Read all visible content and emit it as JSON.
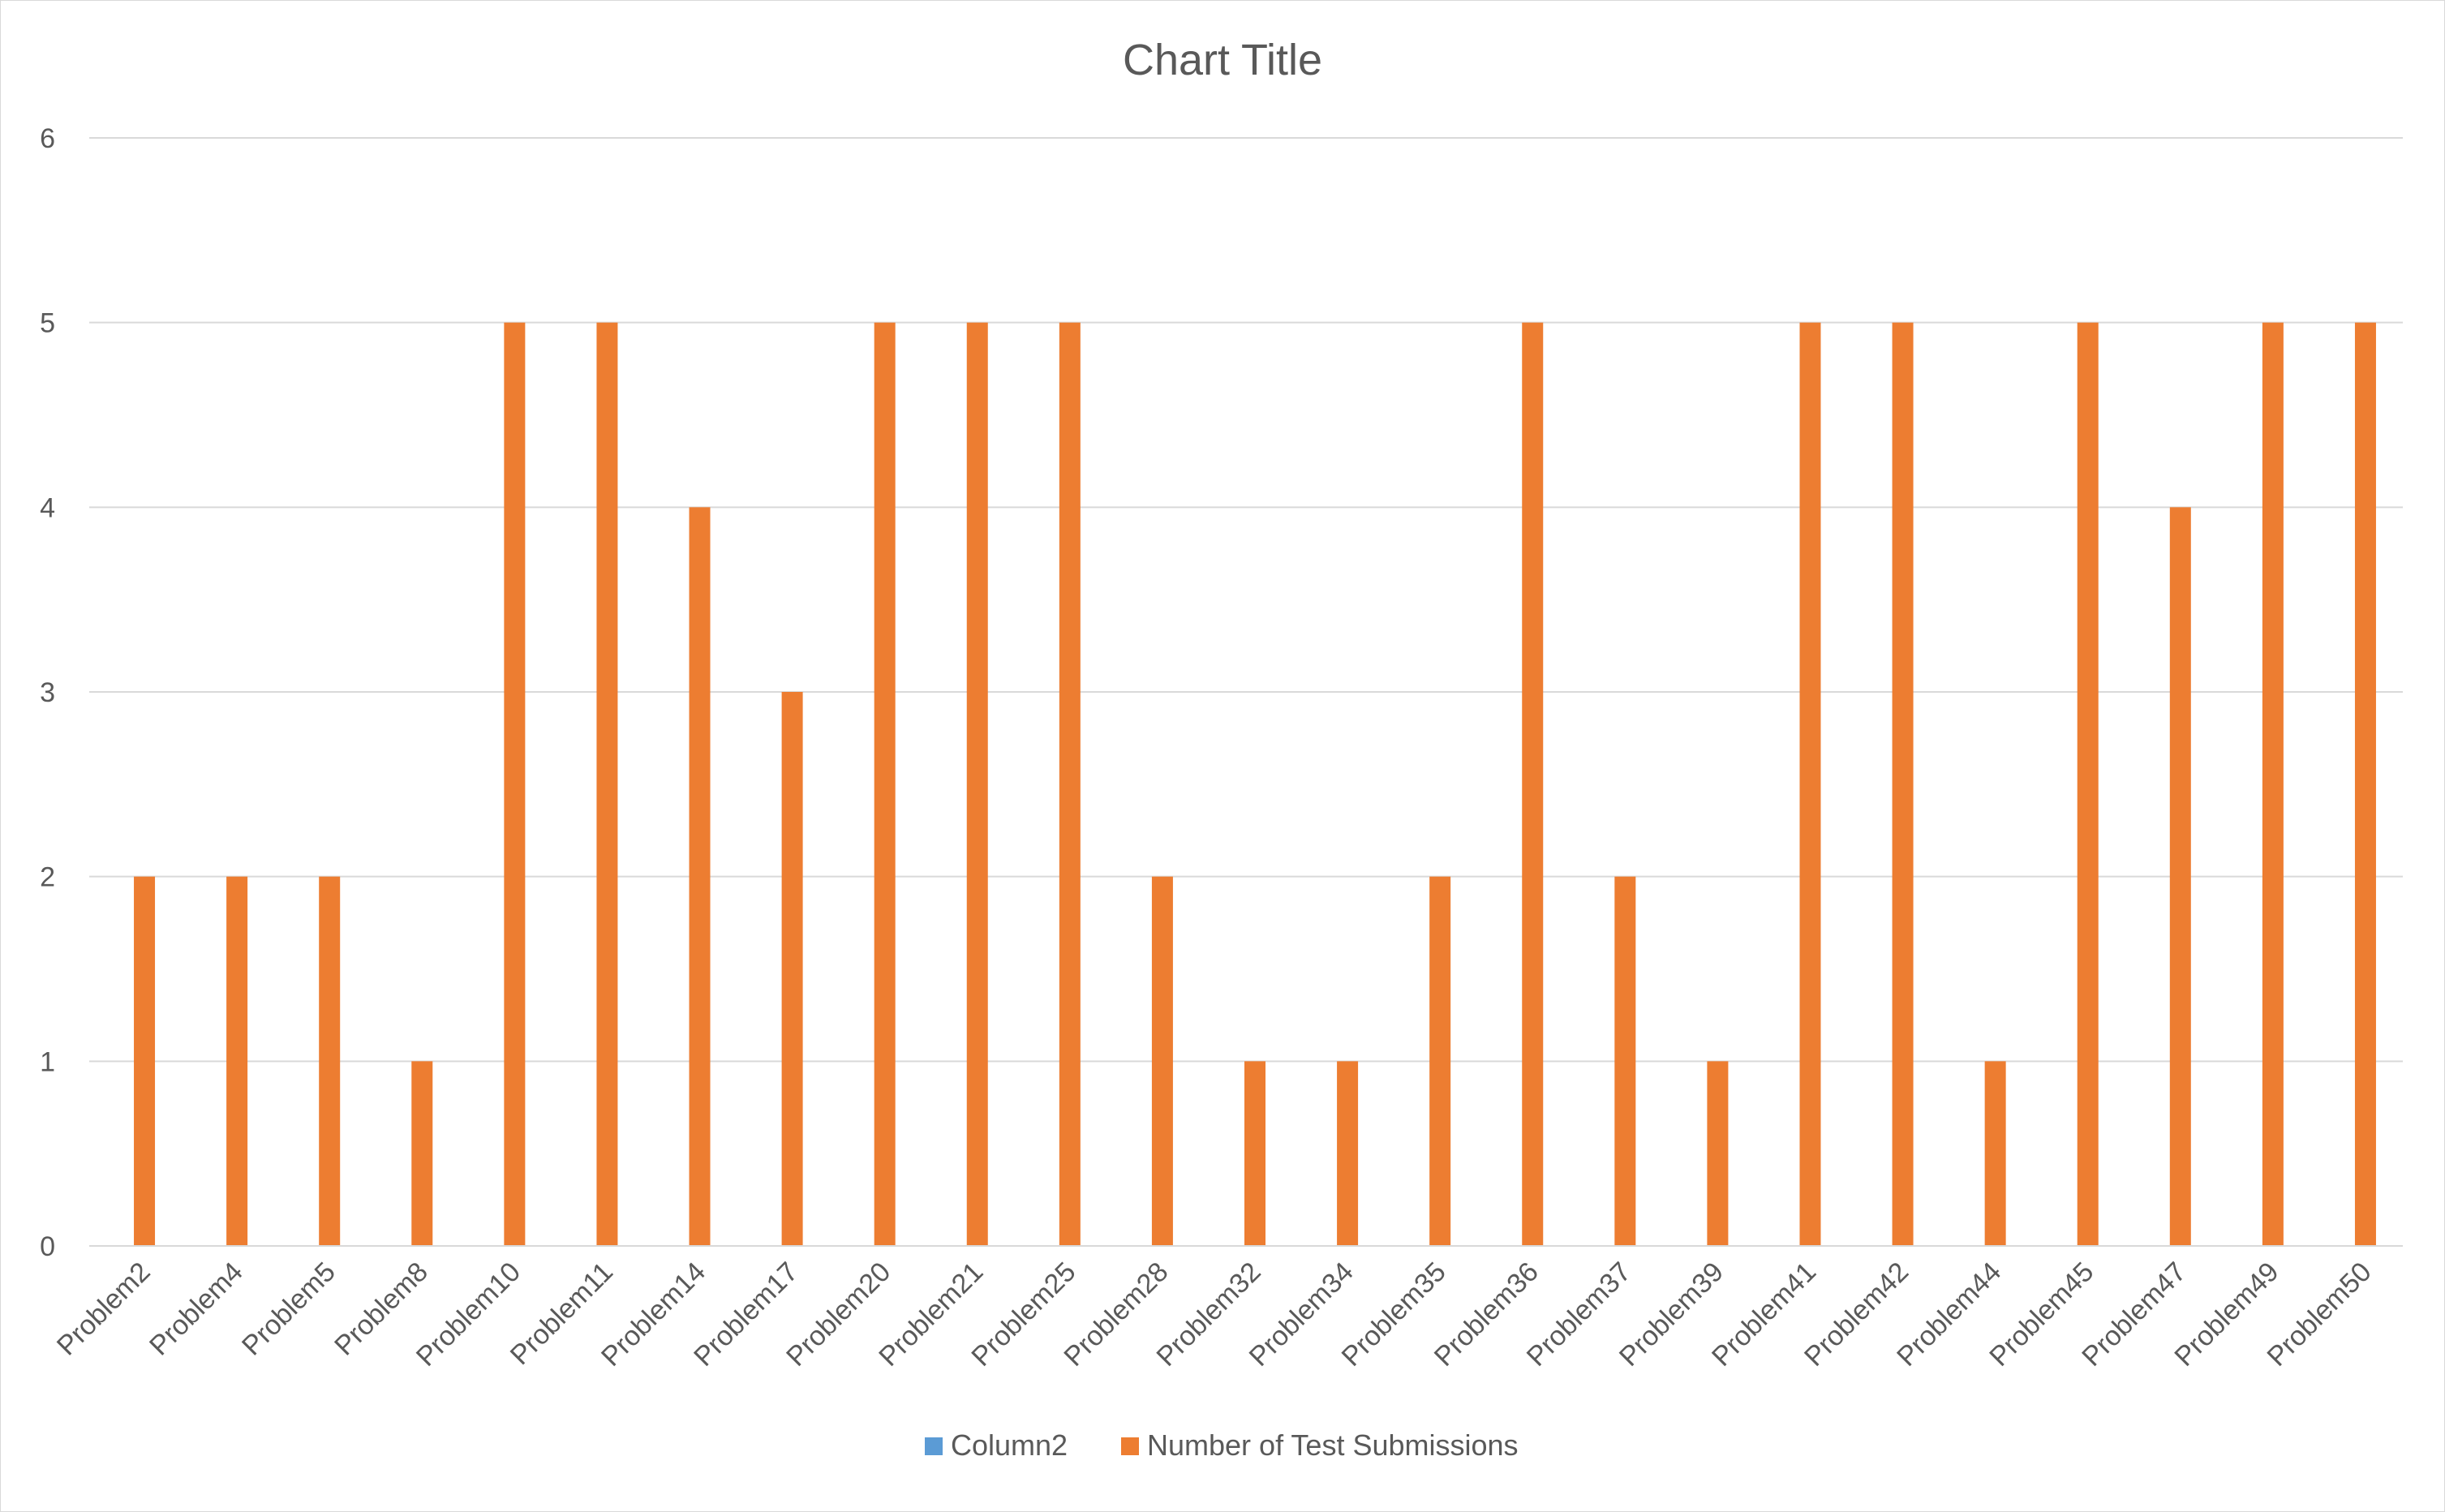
{
  "chart_data": {
    "type": "bar",
    "title": "Chart Title",
    "xlabel": "",
    "ylabel": "",
    "ylim": [
      0,
      6
    ],
    "yticks": [
      0,
      1,
      2,
      3,
      4,
      5,
      6
    ],
    "grid": true,
    "legend_position": "bottom",
    "categories": [
      "Problem2",
      "Problem4",
      "Problem5",
      "Problem8",
      "Problem10",
      "Problem11",
      "Problem14",
      "Problem17",
      "Problem20",
      "Problem21",
      "Problem25",
      "Problem28",
      "Problem32",
      "Problem34",
      "Problem35",
      "Problem36",
      "Problem37",
      "Problem39",
      "Problem41",
      "Problem42",
      "Problem44",
      "Problem45",
      "Problem47",
      "Problem49",
      "Problem50"
    ],
    "series": [
      {
        "name": "Column2",
        "color": "#5b9bd5",
        "values": [
          null,
          null,
          null,
          null,
          null,
          null,
          null,
          null,
          null,
          null,
          null,
          null,
          null,
          null,
          null,
          null,
          null,
          null,
          null,
          null,
          null,
          null,
          null,
          null,
          null
        ]
      },
      {
        "name": "Number of Test Submissions",
        "color": "#ed7d31",
        "values": [
          2,
          2,
          2,
          1,
          5,
          5,
          4,
          3,
          5,
          5,
          5,
          2,
          1,
          1,
          2,
          5,
          2,
          1,
          5,
          5,
          1,
          5,
          4,
          5,
          5
        ]
      }
    ]
  }
}
